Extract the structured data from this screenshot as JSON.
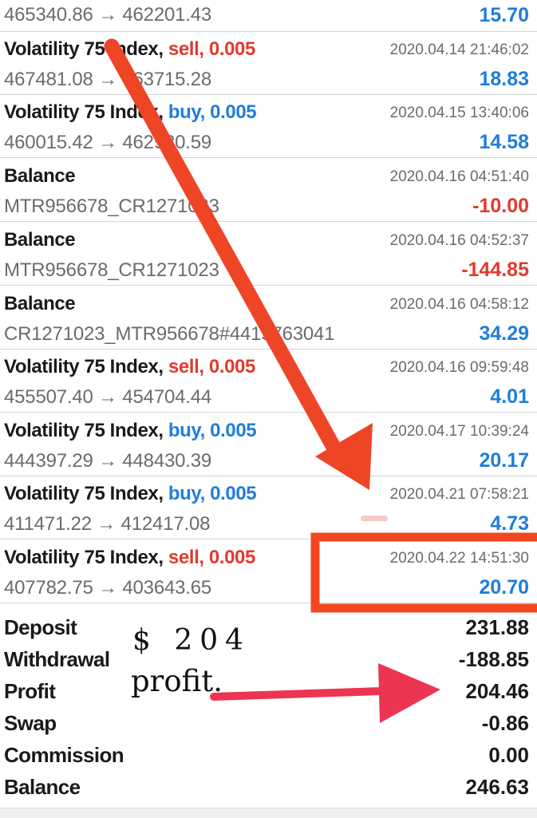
{
  "trades": [
    {
      "kind": "partial",
      "l2": "465340.86 → 462201.43",
      "amount": "15.70",
      "amount_color": "pos"
    },
    {
      "kind": "trade",
      "symbol": "Volatility 75 Index,",
      "side": "sell,",
      "volume": "0.005",
      "time": "2020.04.14 21:46:02",
      "l2": "467481.08 → 463715.28",
      "amount": "18.83",
      "amount_color": "pos"
    },
    {
      "kind": "trade",
      "symbol": "Volatility 75 Index,",
      "side": "buy,",
      "volume": "0.005",
      "time": "2020.04.15 13:40:06",
      "l2": "460015.42 → 462930.59",
      "amount": "14.58",
      "amount_color": "pos"
    },
    {
      "kind": "balance",
      "symbol": "Balance",
      "time": "2020.04.16 04:51:40",
      "l2": "MTR956678_CR1271023",
      "amount": "-10.00",
      "amount_color": "neg"
    },
    {
      "kind": "balance",
      "symbol": "Balance",
      "time": "2020.04.16 04:52:37",
      "l2": "MTR956678_CR1271023",
      "amount": "-144.85",
      "amount_color": "neg"
    },
    {
      "kind": "balance",
      "symbol": "Balance",
      "time": "2020.04.16 04:58:12",
      "l2": "CR1271023_MTR956678#4415763041",
      "amount": "34.29",
      "amount_color": "pos"
    },
    {
      "kind": "trade",
      "symbol": "Volatility 75 Index,",
      "side": "sell,",
      "volume": "0.005",
      "time": "2020.04.16 09:59:48",
      "l2": "455507.40 → 454704.44",
      "amount": "4.01",
      "amount_color": "pos"
    },
    {
      "kind": "trade",
      "symbol": "Volatility 75 Index,",
      "side": "buy,",
      "volume": "0.005",
      "time": "2020.04.17 10:39:24",
      "l2": "444397.29 → 448430.39",
      "amount": "20.17",
      "amount_color": "pos"
    },
    {
      "kind": "trade",
      "symbol": "Volatility 75 Index,",
      "side": "buy,",
      "volume": "0.005",
      "time": "2020.04.21 07:58:21",
      "l2": "411471.22 → 412417.08",
      "amount": "4.73",
      "amount_color": "pos"
    },
    {
      "kind": "trade",
      "symbol": "Volatility 75 Index,",
      "side": "sell,",
      "volume": "0.005",
      "time": "2020.04.22 14:51:30",
      "l2": "407782.75 → 403643.65",
      "amount": "20.70",
      "amount_color": "pos"
    }
  ],
  "summary": [
    {
      "label": "Deposit",
      "value": "231.88"
    },
    {
      "label": "Withdrawal",
      "value": "-188.85"
    },
    {
      "label": "Profit",
      "value": "204.46"
    },
    {
      "label": "Swap",
      "value": "-0.86"
    },
    {
      "label": "Commission",
      "value": "0.00"
    },
    {
      "label": "Balance",
      "value": "246.63"
    }
  ],
  "annotation": {
    "handwritten_amount": "$ 204",
    "handwritten_word": "profit.",
    "arrow_color": "#ee4526",
    "arrow2_color": "#ec3552",
    "highlight_box_color": "#f24720"
  },
  "colors": {
    "sell": "#e23a2e",
    "buy": "#1f7ddb",
    "positive": "#1f7ddb",
    "negative": "#e23a2e"
  }
}
